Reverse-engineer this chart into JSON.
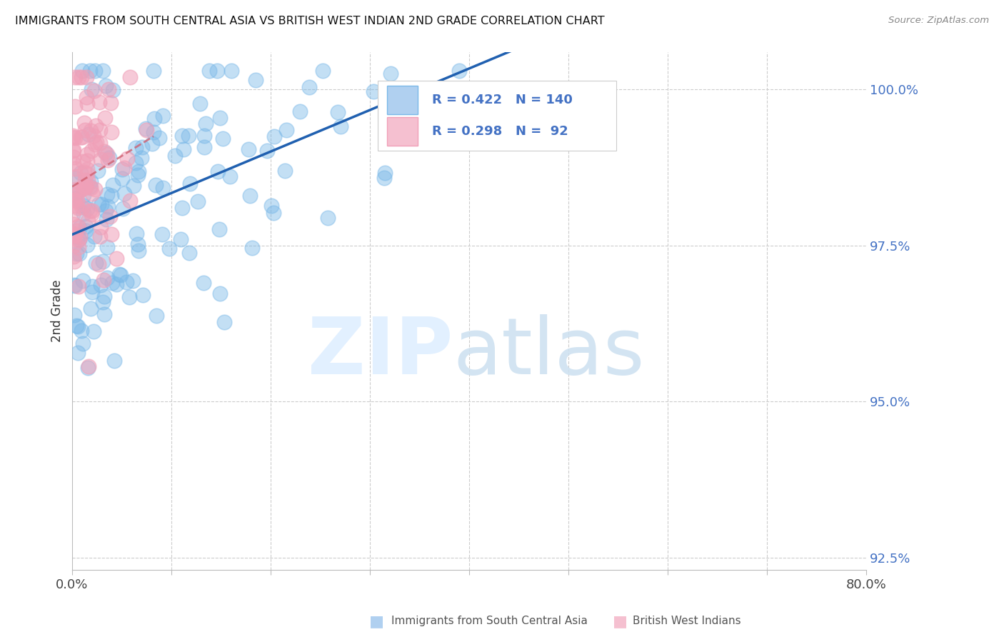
{
  "title": "IMMIGRANTS FROM SOUTH CENTRAL ASIA VS BRITISH WEST INDIAN 2ND GRADE CORRELATION CHART",
  "source": "Source: ZipAtlas.com",
  "ylabel": "2nd Grade",
  "series1_color": "#7ab8e8",
  "series2_color": "#f0a0b8",
  "trendline_color": "#2060b0",
  "trendline2_color": "#d06070",
  "R1": 0.422,
  "N1": 140,
  "R2": 0.298,
  "N2": 92,
  "xmin": 0.0,
  "xmax": 0.8,
  "ymin": 92.3,
  "ymax": 100.6,
  "seed1": 42,
  "seed2": 17
}
